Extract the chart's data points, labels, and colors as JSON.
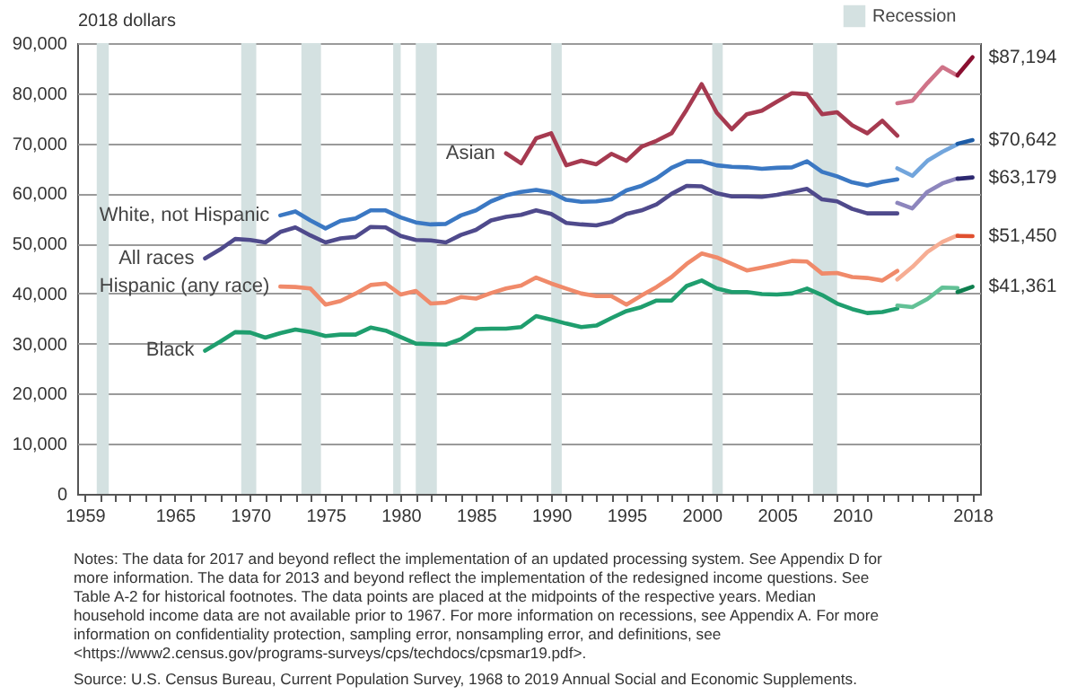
{
  "chart_data": {
    "type": "line",
    "ylabel": "2018 dollars",
    "xlim": [
      1958.5,
      2018.5
    ],
    "xticks": [
      1959,
      {
        "value": 1960,
        "label": null
      },
      {
        "value": 1961,
        "label": null
      },
      {
        "value": 1962,
        "label": null
      },
      {
        "value": 1963,
        "label": null
      },
      {
        "value": 1964,
        "label": null
      },
      1965,
      {
        "value": 1966,
        "label": null
      },
      {
        "value": 1967,
        "label": null
      },
      {
        "value": 1968,
        "label": null
      },
      {
        "value": 1969,
        "label": null
      },
      1970,
      {
        "value": 1971,
        "label": null
      },
      {
        "value": 1972,
        "label": null
      },
      {
        "value": 1973,
        "label": null
      },
      {
        "value": 1974,
        "label": null
      },
      1975,
      {
        "value": 1976,
        "label": null
      },
      {
        "value": 1977,
        "label": null
      },
      {
        "value": 1978,
        "label": null
      },
      {
        "value": 1979,
        "label": null
      },
      1980,
      {
        "value": 1981,
        "label": null
      },
      {
        "value": 1982,
        "label": null
      },
      {
        "value": 1983,
        "label": null
      },
      {
        "value": 1984,
        "label": null
      },
      1985,
      {
        "value": 1986,
        "label": null
      },
      {
        "value": 1987,
        "label": null
      },
      {
        "value": 1988,
        "label": null
      },
      {
        "value": 1989,
        "label": null
      },
      1990,
      {
        "value": 1991,
        "label": null
      },
      {
        "value": 1992,
        "label": null
      },
      {
        "value": 1993,
        "label": null
      },
      {
        "value": 1994,
        "label": null
      },
      1995,
      {
        "value": 1996,
        "label": null
      },
      {
        "value": 1997,
        "label": null
      },
      {
        "value": 1998,
        "label": null
      },
      {
        "value": 1999,
        "label": null
      },
      2000,
      {
        "value": 2001,
        "label": null
      },
      {
        "value": 2002,
        "label": null
      },
      {
        "value": 2003,
        "label": null
      },
      {
        "value": 2004,
        "label": null
      },
      2005,
      {
        "value": 2006,
        "label": null
      },
      {
        "value": 2007,
        "label": null
      },
      {
        "value": 2008,
        "label": null
      },
      {
        "value": 2009,
        "label": null
      },
      2010,
      {
        "value": 2011,
        "label": null
      },
      {
        "value": 2012,
        "label": null
      },
      {
        "value": 2013,
        "label": null
      },
      {
        "value": 2014,
        "label": null
      },
      {
        "value": 2015,
        "label": null
      },
      {
        "value": 2016,
        "label": null
      },
      {
        "value": 2017,
        "label": null
      },
      2018
    ],
    "ylim": [
      0,
      90000
    ],
    "yticks": [
      0,
      {
        "value": 10000,
        "label": "10,000"
      },
      {
        "value": 20000,
        "label": "20,000"
      },
      {
        "value": 30000,
        "label": "30,000"
      },
      {
        "value": 40000,
        "label": "40,000"
      },
      {
        "value": 50000,
        "label": "50,000"
      },
      {
        "value": 60000,
        "label": "60,000"
      },
      {
        "value": 70000,
        "label": "70,000"
      },
      {
        "value": 80000,
        "label": "80,000"
      },
      {
        "value": 90000,
        "label": "90,000"
      }
    ],
    "grid": "y",
    "legend": "top right",
    "bands": [
      {
        "axis": "x",
        "from": 1959.8,
        "to": 1960.6,
        "label": "Recession",
        "color": "#d4e1e1"
      },
      {
        "axis": "x",
        "from": 1969.4,
        "to": 1970.4,
        "color": "#d4e1e1"
      },
      {
        "axis": "x",
        "from": 1973.4,
        "to": 1974.7,
        "color": "#d4e1e1"
      },
      {
        "axis": "x",
        "from": 1979.5,
        "to": 1980.0,
        "color": "#d4e1e1"
      },
      {
        "axis": "x",
        "from": 1981.0,
        "to": 1982.4,
        "color": "#d4e1e1"
      },
      {
        "axis": "x",
        "from": 1990.0,
        "to": 1990.7,
        "color": "#d4e1e1"
      },
      {
        "axis": "x",
        "from": 2000.7,
        "to": 2001.4,
        "color": "#d4e1e1"
      },
      {
        "axis": "x",
        "from": 2007.4,
        "to": 2009.0,
        "color": "#d4e1e1"
      }
    ],
    "series": [
      {
        "name": "Asian",
        "color": "#a63a50",
        "x": [
          1987,
          1988,
          1989,
          1990,
          1991,
          1992,
          1993,
          1994,
          1995,
          1996,
          1997,
          1998,
          1999,
          2000,
          2001,
          2002,
          2003,
          2004,
          2005,
          2006,
          2007,
          2008,
          2009,
          2010,
          2011,
          2012,
          2013
        ],
        "values": [
          68000,
          66000,
          71000,
          72000,
          65600,
          66500,
          65800,
          67900,
          66500,
          69300,
          70500,
          72000,
          76700,
          81800,
          76100,
          72800,
          75800,
          76500,
          78300,
          80000,
          79800,
          75800,
          76200,
          73600,
          72000,
          74500,
          71500
        ]
      },
      {
        "color": "#cf7388",
        "x": [
          2013,
          2014,
          2015,
          2016,
          2017
        ],
        "values": [
          78000,
          78500,
          82000,
          85200,
          83500
        ]
      },
      {
        "color": "#8a0f30",
        "x": [
          2017,
          2018
        ],
        "values": [
          83600,
          87194
        ],
        "value_labels": [
          null,
          "$87,194"
        ]
      },
      {
        "name": "White, not Hispanic",
        "color": "#3b78c3",
        "x": [
          1972,
          1973,
          1974,
          1975,
          1976,
          1977,
          1978,
          1979,
          1980,
          1981,
          1982,
          1983,
          1984,
          1985,
          1986,
          1987,
          1988,
          1989,
          1990,
          1991,
          1992,
          1993,
          1994,
          1995,
          1996,
          1997,
          1998,
          1999,
          2000,
          2001,
          2002,
          2003,
          2004,
          2005,
          2006,
          2007,
          2008,
          2009,
          2010,
          2011,
          2012,
          2013
        ],
        "values": [
          55600,
          56400,
          54600,
          53000,
          54500,
          55000,
          56600,
          56600,
          55200,
          54200,
          53800,
          53900,
          55600,
          56600,
          58400,
          59600,
          60300,
          60700,
          60200,
          58700,
          58300,
          58400,
          58800,
          60600,
          61500,
          63000,
          65100,
          66400,
          66400,
          65600,
          65300,
          65200,
          64900,
          65100,
          65200,
          66400,
          64300,
          63400,
          62200,
          61600,
          62300,
          62800
        ]
      },
      {
        "color": "#72a5dc",
        "x": [
          2013,
          2014,
          2015,
          2016,
          2017
        ],
        "values": [
          65000,
          63500,
          66500,
          68300,
          69800
        ]
      },
      {
        "color": "#1d5ca6",
        "x": [
          2017,
          2018
        ],
        "values": [
          69900,
          70642
        ],
        "value_labels": [
          null,
          "$70,642"
        ]
      },
      {
        "name": "All races",
        "color": "#4f4a8c",
        "x": [
          1967,
          1968,
          1969,
          1970,
          1971,
          1972,
          1973,
          1974,
          1975,
          1976,
          1977,
          1978,
          1979,
          1980,
          1981,
          1982,
          1983,
          1984,
          1985,
          1986,
          1987,
          1988,
          1989,
          1990,
          1991,
          1992,
          1993,
          1994,
          1995,
          1996,
          1997,
          1998,
          1999,
          2000,
          2001,
          2002,
          2003,
          2004,
          2005,
          2006,
          2007,
          2008,
          2009,
          2010,
          2011,
          2012,
          2013
        ],
        "values": [
          47000,
          48800,
          50900,
          50700,
          50200,
          52300,
          53200,
          51600,
          50200,
          51000,
          51300,
          53300,
          53200,
          51500,
          50700,
          50600,
          50200,
          51700,
          52700,
          54600,
          55300,
          55700,
          56600,
          55900,
          54100,
          53800,
          53600,
          54300,
          55900,
          56600,
          57800,
          59900,
          61500,
          61400,
          60000,
          59400,
          59400,
          59300,
          59700,
          60300,
          60900,
          58800,
          58400,
          56900,
          56000,
          56000,
          56000
        ]
      },
      {
        "color": "#8d86bd",
        "x": [
          2013,
          2014,
          2015,
          2016,
          2017
        ],
        "values": [
          58100,
          57000,
          60300,
          62000,
          63000
        ]
      },
      {
        "color": "#2c2870",
        "x": [
          2017,
          2018
        ],
        "values": [
          62900,
          63179
        ],
        "value_labels": [
          null,
          "$63,179"
        ]
      },
      {
        "name": "Hispanic (any race)",
        "color": "#f08a6a",
        "x": [
          1972,
          1973,
          1974,
          1975,
          1976,
          1977,
          1978,
          1979,
          1980,
          1981,
          1982,
          1983,
          1984,
          1985,
          1986,
          1987,
          1988,
          1989,
          1990,
          1991,
          1992,
          1993,
          1994,
          1995,
          1996,
          1997,
          1998,
          1999,
          2000,
          2001,
          2002,
          2003,
          2004,
          2005,
          2006,
          2007,
          2008,
          2009,
          2010,
          2011,
          2012,
          2013
        ],
        "values": [
          41400,
          41300,
          41000,
          37800,
          38500,
          40000,
          41700,
          42000,
          39800,
          40500,
          38000,
          38200,
          39300,
          39000,
          40100,
          41000,
          41600,
          43200,
          42000,
          41000,
          40000,
          39500,
          39500,
          37800,
          39600,
          41300,
          43300,
          45900,
          48000,
          47200,
          45900,
          44600,
          45200,
          45800,
          46500,
          46400,
          44000,
          44100,
          43300,
          43100,
          42600,
          44500
        ]
      },
      {
        "color": "#f6ad93",
        "x": [
          2013,
          2014,
          2015,
          2016,
          2017
        ],
        "values": [
          42800,
          45300,
          48300,
          50300,
          51600
        ]
      },
      {
        "color": "#e0502f",
        "x": [
          2017,
          2018
        ],
        "values": [
          51500,
          51450
        ],
        "value_labels": [
          null,
          "$51,450"
        ]
      },
      {
        "name": "Black",
        "color": "#1f9e6e",
        "x": [
          1967,
          1968,
          1969,
          1970,
          1971,
          1972,
          1973,
          1974,
          1975,
          1976,
          1977,
          1978,
          1979,
          1980,
          1981,
          1982,
          1983,
          1984,
          1985,
          1986,
          1987,
          1988,
          1989,
          1990,
          1991,
          1992,
          1993,
          1994,
          1995,
          1996,
          1997,
          1998,
          1999,
          2000,
          2001,
          2002,
          2003,
          2004,
          2005,
          2006,
          2007,
          2008,
          2009,
          2010,
          2011,
          2012,
          2013
        ],
        "values": [
          28600,
          30400,
          32300,
          32200,
          31200,
          32100,
          32800,
          32300,
          31500,
          31800,
          31800,
          33200,
          32600,
          31300,
          30000,
          29900,
          29800,
          30900,
          32900,
          33000,
          33000,
          33300,
          35500,
          34800,
          34000,
          33300,
          33600,
          35100,
          36500,
          37300,
          38600,
          38600,
          41500,
          42600,
          41000,
          40300,
          40300,
          39900,
          39800,
          40000,
          41000,
          39700,
          38000,
          36900,
          36100,
          36300,
          37000
        ]
      },
      {
        "color": "#62c196",
        "x": [
          2013,
          2014,
          2015,
          2016,
          2017
        ],
        "values": [
          37600,
          37300,
          38900,
          41200,
          41100
        ]
      },
      {
        "color": "#0e7f4f",
        "x": [
          2017,
          2018
        ],
        "values": [
          40300,
          41361
        ],
        "value_labels": [
          null,
          "$41,361"
        ]
      }
    ],
    "annotations": [
      "Notes: The data for 2017 and beyond reflect the implementation of an updated processing system. See Appendix D for more information. The data for 2013 and beyond reflect the implementation of the redesigned income questions. See Table A-2 for historical footnotes. The data points are placed at the midpoints of the respective years. Median household income data are not available prior to 1967. For more information on recessions, see Appendix A. For more information on confidentiality protection, sampling error, nonsampling error, and definitions, see <https://www2.census.gov/programs-surveys/cps/techdocs/cpsmar19.pdf>.",
      "Source: U.S. Census Bureau, Current Population Survey, 1968 to 2019 Annual Social and Economic Supplements."
    ]
  }
}
